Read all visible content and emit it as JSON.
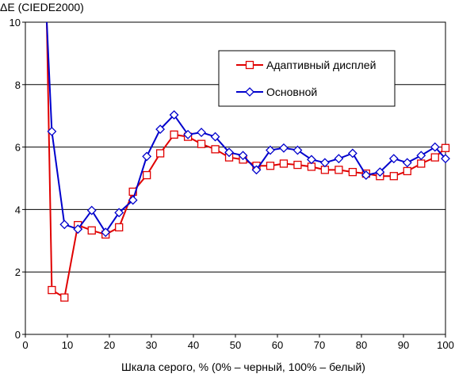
{
  "chart_data": {
    "type": "line",
    "ylabel": "ΔE (CIEDE2000)",
    "xlabel": "Шкала серого, % (0% – черный, 100% – белый)",
    "xlim": [
      0,
      100
    ],
    "ylim": [
      0,
      10
    ],
    "x_ticks": [
      "0",
      "10",
      "20",
      "30",
      "40",
      "50",
      "60",
      "70",
      "80",
      "90",
      "100"
    ],
    "y_ticks": [
      "0",
      "2",
      "4",
      "6",
      "8",
      "10"
    ],
    "grid": "horizontal",
    "legend_position": "top-right",
    "series": [
      {
        "name": "Адаптивный дисплей",
        "color": "#e00000",
        "marker": "square",
        "x": [
          5.1,
          6.3,
          9.3,
          12.5,
          15.8,
          19.1,
          22.3,
          25.6,
          28.9,
          32.1,
          35.4,
          38.7,
          41.9,
          45.2,
          48.5,
          51.8,
          55.0,
          58.3,
          61.5,
          64.8,
          68.1,
          71.3,
          74.6,
          77.9,
          81.1,
          84.4,
          87.7,
          90.9,
          94.2,
          97.5,
          100.0
        ],
        "y": [
          10.0,
          1.42,
          1.18,
          3.5,
          3.33,
          3.2,
          3.43,
          4.57,
          5.1,
          5.8,
          6.4,
          6.33,
          6.1,
          5.93,
          5.67,
          5.6,
          5.4,
          5.4,
          5.47,
          5.43,
          5.37,
          5.27,
          5.27,
          5.2,
          5.15,
          5.07,
          5.07,
          5.23,
          5.47,
          5.67,
          5.97
        ]
      },
      {
        "name": "Основной",
        "color": "#0000cc",
        "marker": "diamond",
        "x": [
          5.1,
          6.3,
          9.3,
          12.5,
          15.8,
          19.1,
          22.3,
          25.6,
          28.9,
          32.1,
          35.4,
          38.7,
          41.9,
          45.2,
          48.5,
          51.8,
          55.0,
          58.3,
          61.5,
          64.8,
          68.1,
          71.3,
          74.6,
          77.9,
          81.1,
          84.4,
          87.7,
          90.9,
          94.2,
          97.5,
          100.0
        ],
        "y": [
          10.0,
          6.5,
          3.52,
          3.37,
          3.97,
          3.27,
          3.9,
          4.3,
          5.7,
          6.57,
          7.03,
          6.4,
          6.47,
          6.33,
          5.83,
          5.73,
          5.27,
          5.9,
          5.97,
          5.9,
          5.6,
          5.5,
          5.63,
          5.8,
          5.1,
          5.2,
          5.63,
          5.5,
          5.73,
          6.0,
          5.63
        ]
      }
    ]
  }
}
